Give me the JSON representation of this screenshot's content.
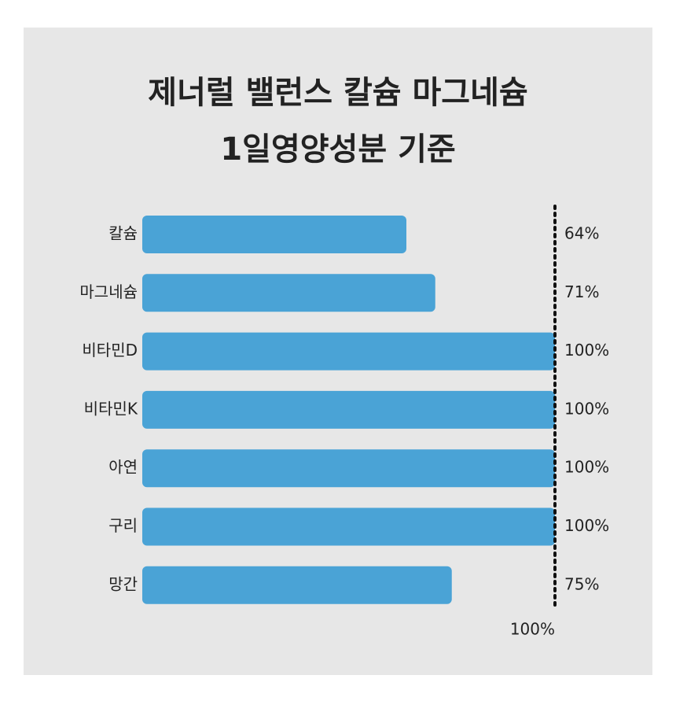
{
  "chart_data": {
    "type": "bar",
    "orientation": "horizontal",
    "title": [
      "제너럴 밸런스 칼슘 마그네슘",
      "1일영양성분 기준"
    ],
    "categories": [
      "칼슘",
      "마그네슘",
      "비타민D",
      "비타민K",
      "아연",
      "구리",
      "망간"
    ],
    "values": [
      64,
      71,
      100,
      100,
      100,
      100,
      75
    ],
    "value_labels": [
      "64%",
      "71%",
      "100%",
      "100%",
      "100%",
      "100%",
      "75%"
    ],
    "color": "#4aa3d6",
    "xlim": [
      0,
      100
    ],
    "reference_line": {
      "value": 100,
      "label": "100%"
    }
  }
}
